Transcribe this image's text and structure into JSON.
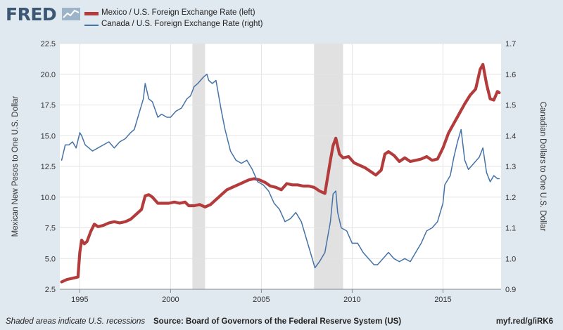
{
  "brand": {
    "logo_text": "FRED"
  },
  "legend": {
    "mexico_label": "Mexico / U.S. Foreign Exchange Rate (left)",
    "canada_label": "Canada / U.S. Foreign Exchange Rate (right)"
  },
  "footer": {
    "note": "Shaded areas indicate U.S. recessions",
    "source": "Source: Board of Governors of the Federal Reserve System (US)",
    "url": "myf.red/g/iRK6"
  },
  "colors": {
    "mexico": "#b33b3b",
    "canada": "#4572a7",
    "plot_bg": "#ffffff",
    "recession": "#e1e1e1",
    "page_bg": "#e1e9f0"
  },
  "chart_data": {
    "type": "line",
    "ylabel_left": "Mexican New Pesos to One U.S. Dollar",
    "ylabel_right": "Canadian Dollars to One U.S. Dollar",
    "xlim": [
      1993.9,
      2018.2
    ],
    "ylim_left": [
      2.5,
      22.5
    ],
    "ylim_right": [
      0.9,
      1.7
    ],
    "xticks": [
      1995,
      2000,
      2005,
      2010,
      2015
    ],
    "yticks_left": [
      2.5,
      5.0,
      7.5,
      10.0,
      12.5,
      15.0,
      17.5,
      20.0,
      22.5
    ],
    "yticks_right": [
      0.9,
      1.0,
      1.1,
      1.2,
      1.3,
      1.4,
      1.5,
      1.6,
      1.7
    ],
    "grid": true,
    "legend_position": "top-left",
    "recessions": [
      [
        2001.2,
        2001.9
      ],
      [
        2007.9,
        2009.5
      ]
    ],
    "series": [
      {
        "name": "Mexico / U.S. Foreign Exchange Rate (left)",
        "axis": "left",
        "x": [
          1994.0,
          1994.3,
          1994.6,
          1994.9,
          1995.0,
          1995.1,
          1995.25,
          1995.4,
          1995.6,
          1995.8,
          1996.0,
          1996.3,
          1996.6,
          1996.9,
          1997.2,
          1997.5,
          1997.8,
          1998.1,
          1998.4,
          1998.6,
          1998.8,
          1999.0,
          1999.3,
          1999.6,
          1999.9,
          2000.2,
          2000.5,
          2000.8,
          2001.0,
          2001.3,
          2001.6,
          2001.9,
          2002.2,
          2002.5,
          2002.8,
          2003.1,
          2003.4,
          2003.7,
          2004.0,
          2004.3,
          2004.6,
          2004.9,
          2005.2,
          2005.5,
          2005.8,
          2006.1,
          2006.4,
          2006.7,
          2007.0,
          2007.3,
          2007.6,
          2007.9,
          2008.2,
          2008.5,
          2008.8,
          2008.95,
          2009.1,
          2009.3,
          2009.5,
          2009.8,
          2010.1,
          2010.4,
          2010.7,
          2011.0,
          2011.3,
          2011.6,
          2011.8,
          2012.0,
          2012.3,
          2012.6,
          2012.9,
          2013.2,
          2013.5,
          2013.8,
          2014.1,
          2014.4,
          2014.7,
          2015.0,
          2015.3,
          2015.6,
          2015.9,
          2016.2,
          2016.5,
          2016.8,
          2017.05,
          2017.2,
          2017.4,
          2017.6,
          2017.8,
          2018.0,
          2018.1
        ],
        "values": [
          3.1,
          3.3,
          3.4,
          3.5,
          5.5,
          6.5,
          6.2,
          6.4,
          7.2,
          7.8,
          7.6,
          7.7,
          7.9,
          8.0,
          7.9,
          8.0,
          8.2,
          8.6,
          9.0,
          10.1,
          10.2,
          10.0,
          9.5,
          9.5,
          9.5,
          9.6,
          9.5,
          9.6,
          9.3,
          9.3,
          9.4,
          9.2,
          9.4,
          9.8,
          10.2,
          10.6,
          10.8,
          11.0,
          11.2,
          11.4,
          11.5,
          11.4,
          11.2,
          10.9,
          10.8,
          10.6,
          11.1,
          11.0,
          11.0,
          10.9,
          10.9,
          10.8,
          10.5,
          10.3,
          13.0,
          14.2,
          14.8,
          13.5,
          13.2,
          13.3,
          12.8,
          12.6,
          12.4,
          12.1,
          11.8,
          12.2,
          13.5,
          13.7,
          13.4,
          12.9,
          13.2,
          12.9,
          13.0,
          13.1,
          13.3,
          13.0,
          13.1,
          14.0,
          15.2,
          16.0,
          16.8,
          17.6,
          18.3,
          18.8,
          20.4,
          20.8,
          19.2,
          18.0,
          17.9,
          18.6,
          18.5
        ]
      },
      {
        "name": "Canada / U.S. Foreign Exchange Rate (right)",
        "axis": "right",
        "x": [
          1994.0,
          1994.2,
          1994.4,
          1994.6,
          1994.8,
          1995.0,
          1995.1,
          1995.3,
          1995.5,
          1995.7,
          1996.0,
          1996.3,
          1996.6,
          1996.9,
          1997.2,
          1997.5,
          1997.8,
          1998.0,
          1998.3,
          1998.5,
          1998.6,
          1998.8,
          1999.0,
          1999.3,
          1999.5,
          1999.8,
          2000.0,
          2000.3,
          2000.6,
          2000.9,
          2001.1,
          2001.3,
          2001.5,
          2001.8,
          2002.0,
          2002.1,
          2002.3,
          2002.5,
          2002.8,
          2003.0,
          2003.3,
          2003.6,
          2003.9,
          2004.2,
          2004.5,
          2004.8,
          2005.1,
          2005.4,
          2005.7,
          2006.0,
          2006.3,
          2006.6,
          2006.9,
          2007.2,
          2007.5,
          2007.8,
          2007.95,
          2008.2,
          2008.5,
          2008.8,
          2008.95,
          2009.1,
          2009.2,
          2009.4,
          2009.7,
          2010.0,
          2010.3,
          2010.6,
          2010.9,
          2011.2,
          2011.4,
          2011.7,
          2012.0,
          2012.3,
          2012.6,
          2012.9,
          2013.2,
          2013.5,
          2013.8,
          2014.1,
          2014.4,
          2014.7,
          2015.0,
          2015.1,
          2015.4,
          2015.6,
          2015.8,
          2016.0,
          2016.2,
          2016.4,
          2016.7,
          2017.0,
          2017.2,
          2017.4,
          2017.6,
          2017.8,
          2018.0,
          2018.1
        ],
        "values": [
          1.32,
          1.37,
          1.37,
          1.38,
          1.36,
          1.41,
          1.4,
          1.37,
          1.36,
          1.35,
          1.36,
          1.37,
          1.38,
          1.36,
          1.38,
          1.39,
          1.41,
          1.42,
          1.48,
          1.52,
          1.57,
          1.52,
          1.51,
          1.46,
          1.47,
          1.46,
          1.46,
          1.48,
          1.49,
          1.52,
          1.53,
          1.56,
          1.57,
          1.59,
          1.6,
          1.58,
          1.57,
          1.58,
          1.48,
          1.42,
          1.35,
          1.32,
          1.31,
          1.32,
          1.29,
          1.25,
          1.24,
          1.22,
          1.18,
          1.16,
          1.12,
          1.13,
          1.15,
          1.12,
          1.06,
          1.0,
          0.97,
          0.99,
          1.02,
          1.12,
          1.21,
          1.22,
          1.15,
          1.1,
          1.09,
          1.05,
          1.05,
          1.02,
          1.0,
          0.98,
          0.98,
          1.0,
          1.02,
          1.0,
          0.99,
          1.0,
          0.99,
          1.02,
          1.05,
          1.09,
          1.1,
          1.12,
          1.18,
          1.24,
          1.27,
          1.33,
          1.38,
          1.42,
          1.32,
          1.29,
          1.31,
          1.33,
          1.36,
          1.28,
          1.25,
          1.27,
          1.26,
          1.26
        ]
      }
    ]
  }
}
